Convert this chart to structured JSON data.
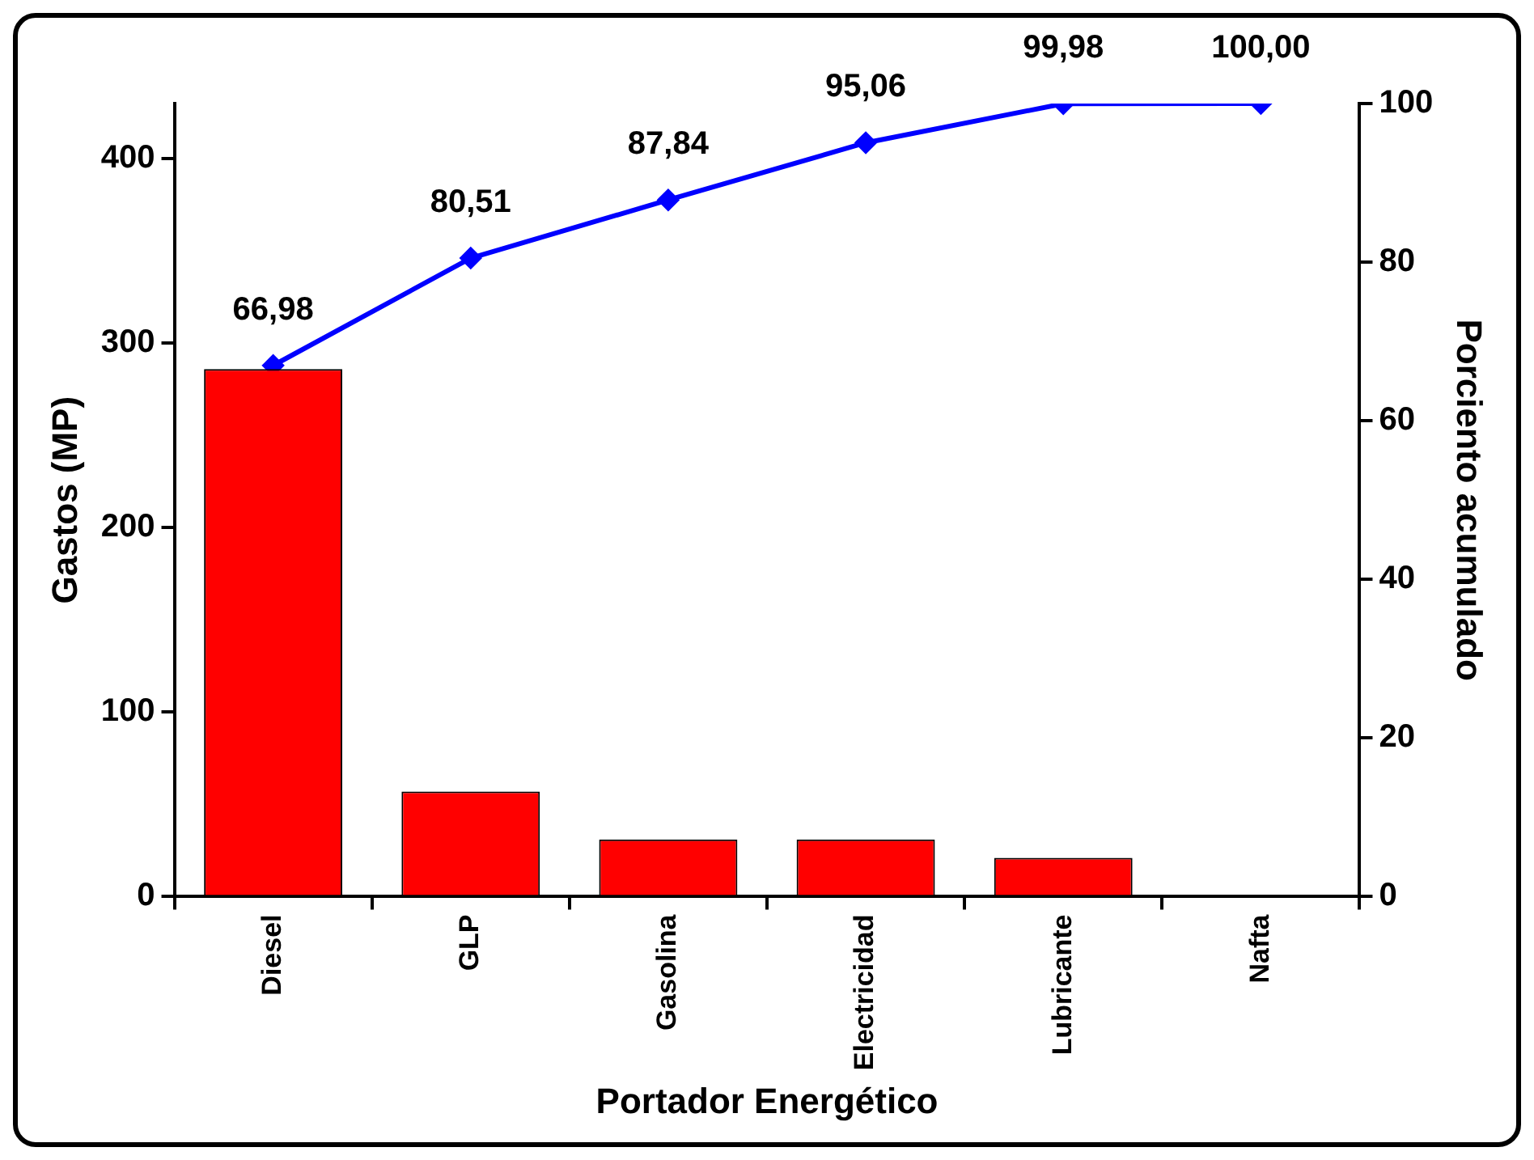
{
  "chart_data": {
    "type": "bar",
    "xlabel": "Portador Energético",
    "ylabel": "Gastos (MP)",
    "y2label": "Porciento acumulado",
    "categories": [
      "Diesel",
      "GLP",
      "Gasolina",
      "Electricidad",
      "Lubricante",
      "Nafta"
    ],
    "series": [
      {
        "color": "#ff0000",
        "values": [
          286,
          57,
          31,
          31,
          21,
          0
        ]
      },
      {
        "type": "line",
        "axis": "y2",
        "color": "#0000ff",
        "values": [
          66.98,
          80.51,
          87.84,
          95.06,
          99.98,
          100.0
        ],
        "value_labels": [
          "66,98",
          "80,51",
          "87,84",
          "95,06",
          "99,98",
          "100,00"
        ]
      }
    ],
    "ylim": [
      0,
      430
    ],
    "yticks": [
      0,
      100,
      200,
      300,
      400
    ],
    "y2lim": [
      0,
      100
    ],
    "y2ticks": [
      0,
      20,
      40,
      60,
      80,
      100
    ],
    "marker": "diamond"
  }
}
